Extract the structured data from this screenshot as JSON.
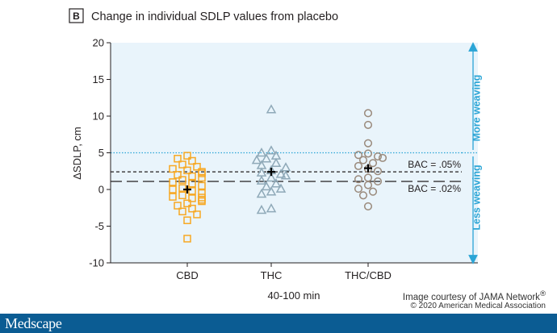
{
  "panel_letter": "B",
  "chart_data": {
    "type": "scatter",
    "title": "Change in individual SDLP values from placebo",
    "ylabel": "ΔSDLP, cm",
    "xlabel": "40-100 min",
    "ylim": [
      -10,
      20
    ],
    "yticks": [
      -10,
      -5,
      0,
      5,
      10,
      15,
      20
    ],
    "categories": [
      "CBD",
      "THC",
      "THC/CBD"
    ],
    "reference_lines": [
      {
        "value": 5,
        "style": "dotted",
        "color": "#2ba5d6",
        "label": ""
      },
      {
        "value": 2.4,
        "style": "short-dashed",
        "color": "#231f20",
        "label": "BAC = .05%"
      },
      {
        "value": 1.1,
        "style": "long-dashed",
        "color": "#231f20",
        "label": "BAC = .02%"
      }
    ],
    "annotations": [
      {
        "text": "More weaving",
        "direction": "up"
      },
      {
        "text": "Less weaving",
        "direction": "down"
      }
    ],
    "series": [
      {
        "category": "CBD",
        "marker": "square",
        "color": "#f7a823",
        "mean": 0,
        "values": [
          4.6,
          4.2,
          3.9,
          3.4,
          3.1,
          2.8,
          2.6,
          2.4,
          2.2,
          2.0,
          1.8,
          1.6,
          1.3,
          1.0,
          0.8,
          0.5,
          0.2,
          0.0,
          -0.2,
          -0.5,
          -0.8,
          -1.0,
          -1.1,
          -1.2,
          -1.4,
          -1.6,
          -1.9,
          -2.2,
          -2.6,
          -3.0,
          -3.4,
          -4.2,
          -6.7
        ]
      },
      {
        "category": "THC",
        "marker": "triangle",
        "color": "#8fa9b8",
        "mean": 2.4,
        "values": [
          10.9,
          5.3,
          5.0,
          4.6,
          4.2,
          4.0,
          3.6,
          3.3,
          3.0,
          2.6,
          2.3,
          2.1,
          1.9,
          1.6,
          1.2,
          0.8,
          0.4,
          0.1,
          -0.3,
          -0.6,
          -2.6,
          -2.8
        ]
      },
      {
        "category": "THC/CBD",
        "marker": "circle",
        "color": "#9a8a7c",
        "mean": 2.9,
        "values": [
          10.4,
          8.8,
          6.3,
          4.9,
          4.7,
          4.5,
          4.3,
          4.0,
          3.6,
          3.2,
          2.8,
          2.5,
          1.6,
          1.4,
          1.1,
          0.6,
          0.1,
          -0.3,
          -0.8,
          -2.3
        ]
      }
    ]
  },
  "credit": {
    "line1": "Image courtesy of JAMA Network",
    "line1_sup": "®",
    "line2": "© 2020 American Medical Association"
  },
  "footer": {
    "logo": "Medscape"
  }
}
